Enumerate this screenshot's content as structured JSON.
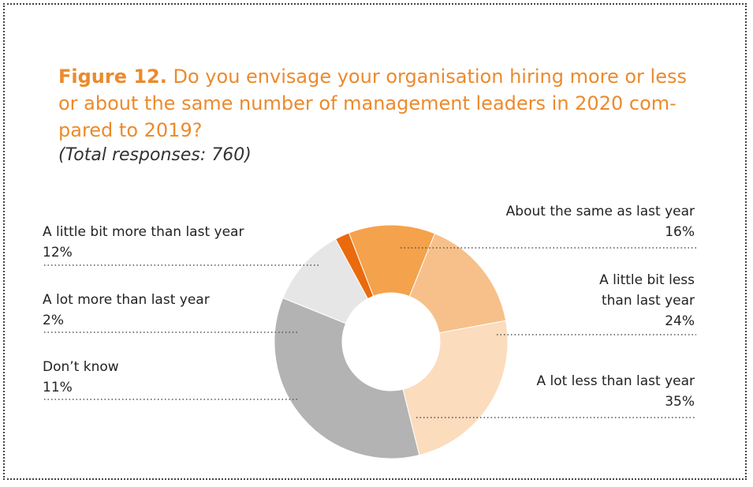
{
  "title_prefix": "Figure 12.",
  "title_text": "Do you envisage your organisation hiring more or less or about the same number of management leaders in 2020 com-pared to 2019?",
  "subtitle": "(Total responses: 760)",
  "chart_data": {
    "type": "pie",
    "donut": true,
    "title": "Figure 12. Do you envisage your organisation hiring more or less or about the same number of management leaders in 2020 compared to 2019?",
    "subtitle": "(Total responses: 760)",
    "unit": "%",
    "slices": [
      {
        "label": "About the same as last year",
        "value": 16,
        "display": "16%",
        "color": "#f7c08a"
      },
      {
        "label": "A little bit less than last year",
        "value": 24,
        "display": "24%",
        "color": "#fbdcbd"
      },
      {
        "label": "A lot less than last year",
        "value": 35,
        "display": "35%",
        "color": "#b3b3b3"
      },
      {
        "label": "Don’t know",
        "value": 11,
        "display": "11%",
        "color": "#e6e6e6"
      },
      {
        "label": "A lot more than last year",
        "value": 2,
        "display": "2%",
        "color": "#ea6a0e"
      },
      {
        "label": "A little bit more than last year",
        "value": 12,
        "display": "12%",
        "color": "#f5a24c"
      }
    ]
  },
  "labels": {
    "same": {
      "line1": "About the same as last year",
      "pct": "16%"
    },
    "less_little": {
      "line1": "A little bit less",
      "line2": "than last year",
      "pct": "24%"
    },
    "less_lot": {
      "line1": "A lot less than last year",
      "pct": "35%"
    },
    "more_little": {
      "line1": "A little bit more than last year",
      "pct": "12%"
    },
    "more_lot": {
      "line1": "A lot more than last year",
      "pct": "2%"
    },
    "dont_know": {
      "line1": "Don’t know",
      "pct": "11%"
    }
  }
}
